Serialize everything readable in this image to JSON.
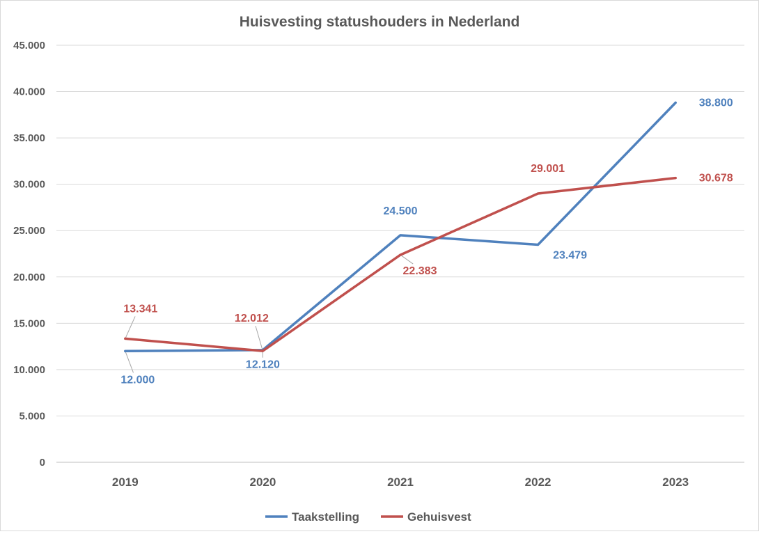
{
  "chart_data": {
    "type": "line",
    "title": "Huisvesting statushouders in Nederland",
    "xlabel": "",
    "ylabel": "",
    "categories": [
      "2019",
      "2020",
      "2021",
      "2022",
      "2023"
    ],
    "ylim": [
      0,
      45000
    ],
    "ytick_labels": [
      "0",
      "5.000",
      "10.000",
      "15.000",
      "20.000",
      "25.000",
      "30.000",
      "35.000",
      "40.000",
      "45.000"
    ],
    "grid": true,
    "legend_position": "bottom",
    "series": [
      {
        "name": "Taakstelling",
        "color": "#4f81bd",
        "values": [
          12000,
          12120,
          24500,
          23479,
          38800
        ],
        "labels": [
          "12.000",
          "12.120",
          "24.500",
          "23.479",
          "38.800"
        ]
      },
      {
        "name": "Gehuisvest",
        "color": "#c0504d",
        "values": [
          13341,
          12012,
          22383,
          29001,
          30678
        ],
        "labels": [
          "13.341",
          "12.012",
          "22.383",
          "29.001",
          "30.678"
        ]
      }
    ]
  }
}
